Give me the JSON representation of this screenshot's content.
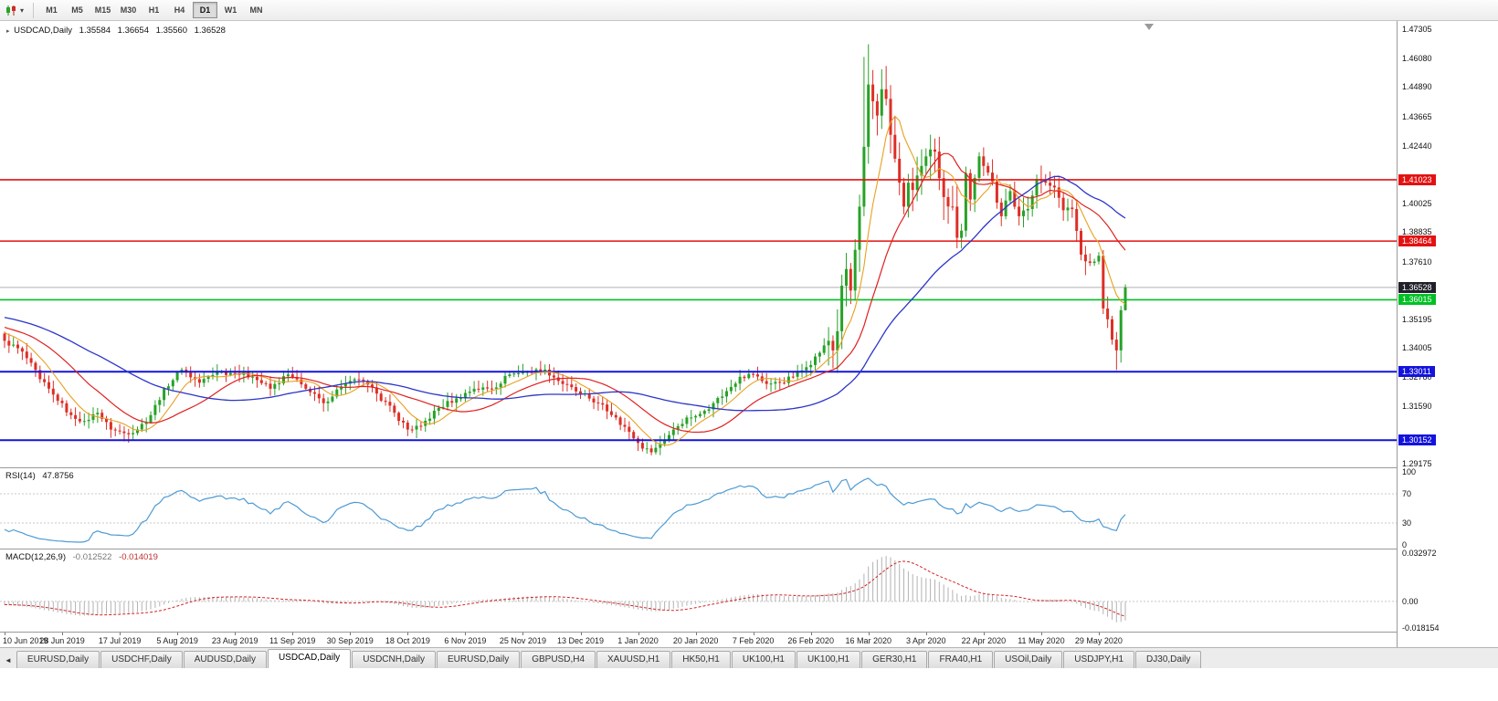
{
  "icons": {
    "timeframe_caret": "▾",
    "symbol_marker": "▸",
    "scroll_left": "◄",
    "scroll_to_end": "▼"
  },
  "toolbar": {
    "timeframes": [
      "M1",
      "M5",
      "M15",
      "M30",
      "H1",
      "H4",
      "D1",
      "W1",
      "MN"
    ],
    "active": "D1"
  },
  "chart_title": {
    "symbol": "USDCAD,Daily",
    "open": "1.35584",
    "high": "1.36654",
    "low": "1.35560",
    "close": "1.36528"
  },
  "tabs": {
    "items": [
      "EURUSD,Daily",
      "USDCHF,Daily",
      "AUDUSD,Daily",
      "USDCAD,Daily",
      "USDCNH,Daily",
      "EURUSD,Daily",
      "GBPUSD,H4",
      "XAUUSD,H1",
      "HK50,H1",
      "UK100,H1",
      "UK100,H1",
      "GER30,H1",
      "FRA40,H1",
      "USOil,Daily",
      "USDJPY,H1",
      "DJ30,Daily"
    ],
    "active_index": 3
  },
  "chart_data": {
    "type": "candlestick",
    "symbol": "USDCAD",
    "period": "Daily",
    "current_ohlc": {
      "open": 1.35584,
      "high": 1.36654,
      "low": 1.3556,
      "close": 1.36528
    },
    "price_axis": {
      "top": 1.4765,
      "bottom": 1.2902,
      "labels": [
        {
          "text": "1.47305",
          "value": 1.47305
        },
        {
          "text": "1.46080",
          "value": 1.4608
        },
        {
          "text": "1.44890",
          "value": 1.4489
        },
        {
          "text": "1.43665",
          "value": 1.43665
        },
        {
          "text": "1.42440",
          "value": 1.4244
        },
        {
          "text": "1.40025",
          "value": 1.40025
        },
        {
          "text": "1.38835",
          "value": 1.38835
        },
        {
          "text": "1.37610",
          "value": 1.3761
        },
        {
          "text": "1.35195",
          "value": 1.35195
        },
        {
          "text": "1.34005",
          "value": 1.34005
        },
        {
          "text": "1.32780",
          "value": 1.3278
        },
        {
          "text": "1.31590",
          "value": 1.3159
        },
        {
          "text": "1.29175",
          "value": 1.29175
        }
      ],
      "badges": [
        {
          "text": "1.41023",
          "value": 1.41023,
          "color": "#e31212"
        },
        {
          "text": "1.38464",
          "value": 1.38464,
          "color": "#e31212"
        },
        {
          "text": "1.36528",
          "value": 1.36528,
          "color": "#20202a"
        },
        {
          "text": "1.36015",
          "value": 1.36015,
          "color": "#00c025"
        },
        {
          "text": "1.33011",
          "value": 1.33011,
          "color": "#1313dd"
        },
        {
          "text": "1.30152",
          "value": 1.30152,
          "color": "#1313dd"
        }
      ]
    },
    "horizontal_lines": [
      {
        "value": 1.41023,
        "color": "#e31212",
        "width": 1.6
      },
      {
        "value": 1.38464,
        "color": "#e31212",
        "width": 1.6
      },
      {
        "value": 1.36015,
        "color": "#00c025",
        "width": 1.6
      },
      {
        "value": 1.33011,
        "color": "#1313dd",
        "width": 2
      },
      {
        "value": 1.30152,
        "color": "#1313dd",
        "width": 2
      }
    ],
    "current_price_line": {
      "value": 1.36528,
      "color": "#b0b0b0"
    },
    "date_axis": {
      "candles_per_label": 13,
      "labels": [
        "10 Jun 2019",
        "28 Jun 2019",
        "17 Jul 2019",
        "5 Aug 2019",
        "23 Aug 2019",
        "11 Sep 2019",
        "30 Sep 2019",
        "18 Oct 2019",
        "6 Nov 2019",
        "25 Nov 2019",
        "13 Dec 2019",
        "1 Jan 2020",
        "20 Jan 2020",
        "7 Feb 2020",
        "26 Feb 2020",
        "16 Mar 2020",
        "3 Apr 2020",
        "22 Apr 2020",
        "11 May 2020",
        "29 May 2020"
      ]
    },
    "candles": {
      "count": 254,
      "colors": {
        "up": "#27a227",
        "down": "#dd2f27"
      },
      "first_open": 1.346,
      "noise": 0.0011,
      "wick": 0.0036,
      "prehistory": {
        "count": 50,
        "from": 1.362,
        "to": 1.346
      },
      "volatility_zones": [
        {
          "to": 186,
          "mult": 1.0
        },
        {
          "to": 217,
          "mult": 2.8
        },
        {
          "to": 254,
          "mult": 1.6
        }
      ],
      "close_anchors": [
        [
          0,
          1.343
        ],
        [
          4,
          1.3385
        ],
        [
          8,
          1.327
        ],
        [
          12,
          1.318
        ],
        [
          15,
          1.312
        ],
        [
          18,
          1.3095
        ],
        [
          21,
          1.313
        ],
        [
          24,
          1.306
        ],
        [
          27,
          1.3045
        ],
        [
          30,
          1.306
        ],
        [
          33,
          1.312
        ],
        [
          36,
          1.323
        ],
        [
          40,
          1.331
        ],
        [
          44,
          1.3255
        ],
        [
          48,
          1.33
        ],
        [
          52,
          1.3295
        ],
        [
          56,
          1.328
        ],
        [
          60,
          1.323
        ],
        [
          64,
          1.329
        ],
        [
          68,
          1.323
        ],
        [
          72,
          1.317
        ],
        [
          76,
          1.324
        ],
        [
          80,
          1.3268
        ],
        [
          84,
          1.321
        ],
        [
          88,
          1.313
        ],
        [
          91,
          1.306
        ],
        [
          94,
          1.3075
        ],
        [
          98,
          1.315
        ],
        [
          102,
          1.319
        ],
        [
          106,
          1.323
        ],
        [
          110,
          1.323
        ],
        [
          114,
          1.329
        ],
        [
          118,
          1.33
        ],
        [
          122,
          1.331
        ],
        [
          126,
          1.325
        ],
        [
          130,
          1.321
        ],
        [
          134,
          1.317
        ],
        [
          138,
          1.311
        ],
        [
          141,
          1.305
        ],
        [
          144,
          1.298
        ],
        [
          146,
          1.2965
        ],
        [
          148,
          1.3
        ],
        [
          151,
          1.306
        ],
        [
          154,
          1.311
        ],
        [
          157,
          1.3125
        ],
        [
          160,
          1.317
        ],
        [
          163,
          1.322
        ],
        [
          166,
          1.328
        ],
        [
          169,
          1.329
        ],
        [
          172,
          1.325
        ],
        [
          175,
          1.3255
        ],
        [
          178,
          1.328
        ],
        [
          181,
          1.332
        ],
        [
          184,
          1.338
        ],
        [
          186,
          1.343
        ],
        [
          187,
          1.339
        ],
        [
          188,
          1.347
        ],
        [
          189,
          1.366
        ],
        [
          190,
          1.373
        ],
        [
          191,
          1.364
        ],
        [
          192,
          1.381
        ],
        [
          193,
          1.399
        ],
        [
          194,
          1.424
        ],
        [
          195,
          1.45
        ],
        [
          196,
          1.443
        ],
        [
          197,
          1.437
        ],
        [
          198,
          1.448
        ],
        [
          199,
          1.444
        ],
        [
          200,
          1.429
        ],
        [
          201,
          1.419
        ],
        [
          202,
          1.409
        ],
        [
          203,
          1.399
        ],
        [
          204,
          1.409
        ],
        [
          205,
          1.406
        ],
        [
          206,
          1.412
        ],
        [
          207,
          1.416
        ],
        [
          208,
          1.42
        ],
        [
          210,
          1.422
        ],
        [
          212,
          1.403
        ],
        [
          214,
          1.399
        ],
        [
          215,
          1.386
        ],
        [
          216,
          1.389
        ],
        [
          217,
          1.413
        ],
        [
          218,
          1.402
        ],
        [
          219,
          1.411
        ],
        [
          220,
          1.42
        ],
        [
          221,
          1.416
        ],
        [
          223,
          1.4095
        ],
        [
          225,
          1.395
        ],
        [
          227,
          1.4055
        ],
        [
          229,
          1.395
        ],
        [
          231,
          1.398
        ],
        [
          233,
          1.4105
        ],
        [
          235,
          1.409
        ],
        [
          237,
          1.407
        ],
        [
          239,
          1.3975
        ],
        [
          241,
          1.398
        ],
        [
          243,
          1.379
        ],
        [
          245,
          1.3755
        ],
        [
          247,
          1.3785
        ],
        [
          248,
          1.3565
        ],
        [
          249,
          1.352
        ],
        [
          250,
          1.3435
        ],
        [
          251,
          1.339
        ],
        [
          252,
          1.3558
        ],
        [
          253,
          1.36528
        ]
      ],
      "high_overrides": [
        [
          194,
          1.4615
        ],
        [
          195,
          1.4668
        ],
        [
          253,
          1.36654
        ]
      ],
      "low_overrides": [
        [
          251,
          1.3308
        ],
        [
          253,
          1.3556
        ]
      ]
    },
    "moving_averages": [
      {
        "period": 8,
        "method": "sma",
        "color": "#e8a020",
        "width": 1.1
      },
      {
        "period": 20,
        "method": "sma",
        "color": "#e02020",
        "width": 1.2
      },
      {
        "period": 45,
        "method": "sma",
        "color": "#2c35c8",
        "width": 1.3
      }
    ],
    "rsi": {
      "label": "RSI(14)",
      "value": "47.8756",
      "period": 14,
      "color": "#4e9bd4",
      "dotted_levels": [
        70,
        30
      ],
      "axis_labels": [
        {
          "text": "100",
          "value": 100
        },
        {
          "text": "70",
          "value": 70
        },
        {
          "text": "30",
          "value": 30
        },
        {
          "text": "0",
          "value": 0
        }
      ]
    },
    "macd": {
      "label": "MACD(12,26,9)",
      "macd_value": "-0.012522",
      "signal_value": "-0.014019",
      "fast": 12,
      "slow": 26,
      "signal": 9,
      "histogram_color": "#b2b2b2",
      "signal_color": "#d42222",
      "scale": {
        "top": 0.032972,
        "bottom": -0.018154
      },
      "axis_labels": [
        {
          "text": "0.032972",
          "value": 0.032972
        },
        {
          "text": "0.00",
          "value": 0
        },
        {
          "text": "-0.018154",
          "value": -0.018154
        }
      ]
    }
  }
}
